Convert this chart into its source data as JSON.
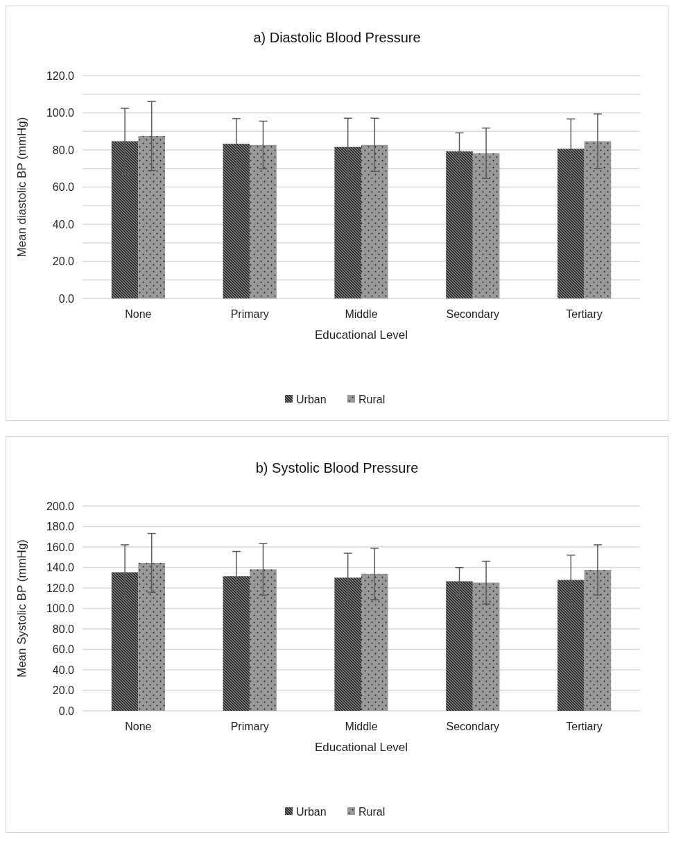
{
  "chart_data": [
    {
      "type": "bar",
      "title": "a) Diastolic Blood Pressure",
      "xlabel": "Educational Level",
      "ylabel": "Mean diastolic BP (mmHg)",
      "categories": [
        "None",
        "Primary",
        "Middle",
        "Secondary",
        "Tertiary"
      ],
      "series": [
        {
          "name": "Urban",
          "color": "#8c8c8c",
          "values": [
            84.7,
            83.3,
            81.6,
            79.2,
            80.6
          ],
          "errors": [
            17.7,
            13.6,
            15.5,
            10.0,
            16.1
          ]
        },
        {
          "name": "Rural",
          "color": "#999999",
          "values": [
            87.5,
            82.7,
            82.7,
            78.2,
            84.7
          ],
          "errors": [
            18.6,
            12.8,
            14.4,
            13.6,
            14.7
          ]
        }
      ],
      "ylim": [
        0,
        120
      ],
      "yticks": [
        {
          "value": 0,
          "label": "0.0"
        },
        {
          "value": 10,
          "label": null
        },
        {
          "value": 20,
          "label": "20.0"
        },
        {
          "value": 30,
          "label": null
        },
        {
          "value": 40,
          "label": "40.0"
        },
        {
          "value": 50,
          "label": null
        },
        {
          "value": 60,
          "label": "60.0"
        },
        {
          "value": 70,
          "label": null
        },
        {
          "value": 80,
          "label": "80.0"
        },
        {
          "value": 90,
          "label": null
        },
        {
          "value": 100,
          "label": "100.0"
        },
        {
          "value": 110,
          "label": null
        },
        {
          "value": 120,
          "label": "120.0"
        }
      ],
      "grid": "y",
      "legend": "bottom"
    },
    {
      "type": "bar",
      "title": "b) Systolic Blood Pressure",
      "xlabel": "Educational Level",
      "ylabel": "Mean Systolic BP (mmHg)",
      "categories": [
        "None",
        "Primary",
        "Middle",
        "Secondary",
        "Tertiary"
      ],
      "series": [
        {
          "name": "Urban",
          "color": "#8c8c8c",
          "values": [
            135.3,
            131.4,
            130.1,
            126.5,
            127.8
          ],
          "errors": [
            26.8,
            24.2,
            23.8,
            13.4,
            24.2
          ]
        },
        {
          "name": "Rural",
          "color": "#999999",
          "values": [
            144.4,
            138.2,
            133.7,
            125.2,
            137.6
          ],
          "errors": [
            28.8,
            25.2,
            25.1,
            20.9,
            24.5
          ]
        }
      ],
      "ylim": [
        0,
        200
      ],
      "yticks": [
        {
          "value": 0,
          "label": "0.0"
        },
        {
          "value": 20,
          "label": "20.0"
        },
        {
          "value": 40,
          "label": "40.0"
        },
        {
          "value": 60,
          "label": "60.0"
        },
        {
          "value": 80,
          "label": "80.0"
        },
        {
          "value": 100,
          "label": "100.0"
        },
        {
          "value": 120,
          "label": "120.0"
        },
        {
          "value": 140,
          "label": "140.0"
        },
        {
          "value": 160,
          "label": "160.0"
        },
        {
          "value": 180,
          "label": "180.0"
        },
        {
          "value": 200,
          "label": "200.0"
        }
      ],
      "grid": "y",
      "legend": "bottom"
    }
  ]
}
